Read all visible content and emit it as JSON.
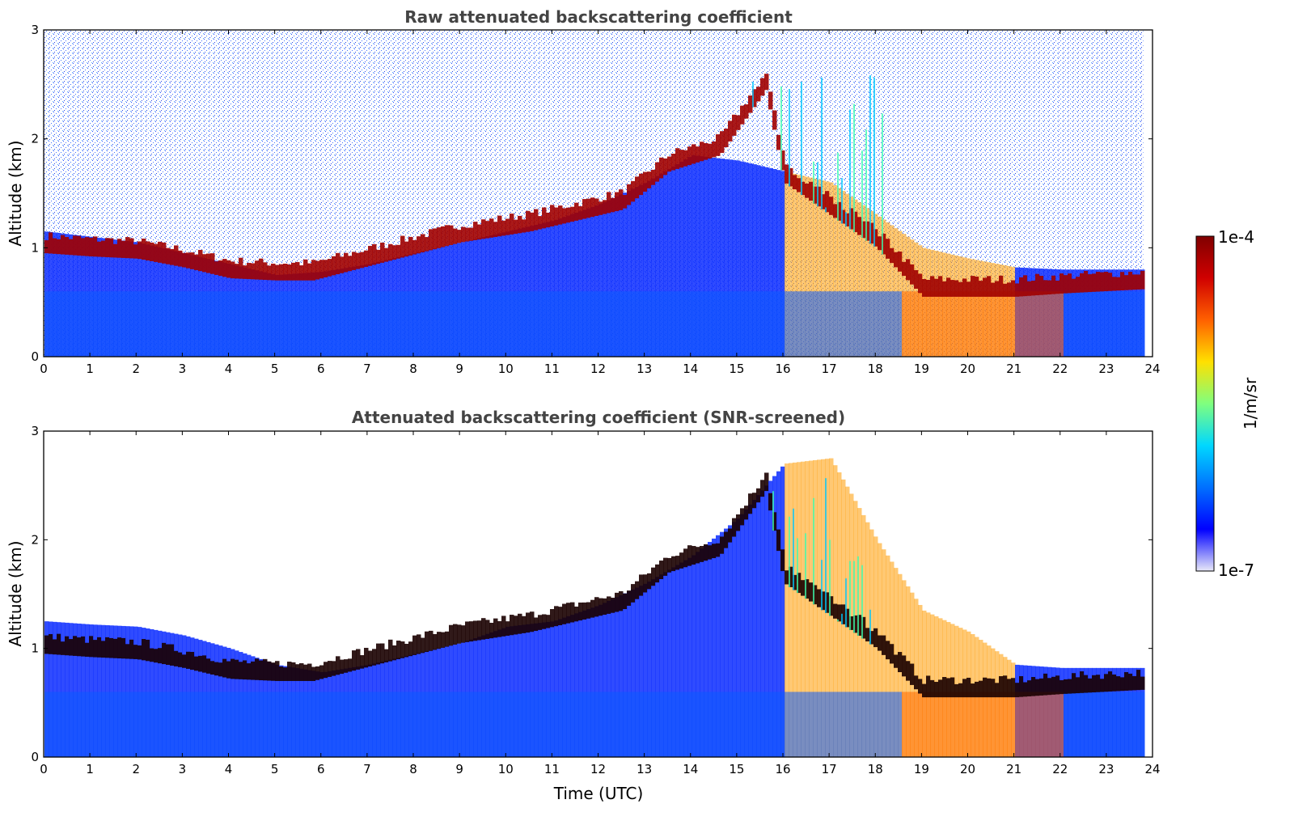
{
  "chart_data": [
    {
      "type": "heatmap",
      "title": "Raw attenuated backscattering coefficient",
      "xlabel": "",
      "ylabel": "Altitude (km)",
      "xlim": [
        0,
        24
      ],
      "ylim": [
        0,
        3
      ],
      "xticks": [
        "0",
        "1",
        "2",
        "3",
        "4",
        "5",
        "6",
        "7",
        "8",
        "9",
        "10",
        "11",
        "12",
        "13",
        "14",
        "15",
        "16",
        "17",
        "18",
        "19",
        "20",
        "21",
        "22",
        "23",
        "24"
      ],
      "yticks": [
        "0",
        "1",
        "2",
        "3"
      ],
      "data_end_hour": 23.8,
      "features": {
        "layer_top_km": [
          [
            0,
            1.15
          ],
          [
            1,
            1.1
          ],
          [
            2,
            1.05
          ],
          [
            3,
            0.95
          ],
          [
            4,
            0.85
          ],
          [
            5,
            0.75
          ],
          [
            6,
            0.78
          ],
          [
            7,
            0.85
          ],
          [
            8,
            0.95
          ],
          [
            9,
            1.05
          ],
          [
            10,
            1.15
          ],
          [
            11,
            1.25
          ],
          [
            12,
            1.4
          ],
          [
            13,
            1.6
          ],
          [
            14,
            1.85
          ],
          [
            15,
            1.8
          ],
          [
            16,
            1.7
          ],
          [
            17,
            1.6
          ],
          [
            18,
            1.3
          ],
          [
            19,
            1.0
          ],
          [
            20,
            0.9
          ],
          [
            21,
            0.82
          ],
          [
            22,
            0.8
          ],
          [
            23,
            0.8
          ],
          [
            23.8,
            0.8
          ]
        ],
        "cloud_base_km": [
          [
            0,
            0.95
          ],
          [
            1,
            0.92
          ],
          [
            2,
            0.9
          ],
          [
            3,
            0.82
          ],
          [
            4,
            0.72
          ],
          [
            5,
            0.7
          ],
          [
            5.8,
            0.7
          ],
          [
            9,
            1.05
          ],
          [
            10.5,
            1.15
          ],
          [
            11.5,
            1.25
          ],
          [
            12.5,
            1.35
          ],
          [
            13.5,
            1.7
          ],
          [
            14.6,
            1.85
          ],
          [
            15.6,
            2.45
          ],
          [
            16,
            1.6
          ],
          [
            17,
            1.3
          ],
          [
            18,
            1.0
          ],
          [
            19,
            0.55
          ],
          [
            20,
            0.55
          ],
          [
            21,
            0.55
          ],
          [
            22,
            0.58
          ],
          [
            23.8,
            0.62
          ]
        ]
      }
    },
    {
      "type": "heatmap",
      "title": "Attenuated backscattering coefficient (SNR-screened)",
      "xlabel": "Time (UTC)",
      "ylabel": "Altitude (km)",
      "xlim": [
        0,
        24
      ],
      "ylim": [
        0,
        3
      ],
      "xticks": [
        "0",
        "1",
        "2",
        "3",
        "4",
        "5",
        "6",
        "7",
        "8",
        "9",
        "10",
        "11",
        "12",
        "13",
        "14",
        "15",
        "16",
        "17",
        "18",
        "19",
        "20",
        "21",
        "22",
        "23",
        "24"
      ],
      "yticks": [
        "0",
        "1",
        "2",
        "3"
      ],
      "data_end_hour": 23.8,
      "features": {
        "screened_top_km": [
          [
            0,
            1.25
          ],
          [
            1,
            1.22
          ],
          [
            2,
            1.2
          ],
          [
            3,
            1.12
          ],
          [
            4,
            1.0
          ],
          [
            5,
            0.85
          ],
          [
            6,
            0.78
          ],
          [
            7,
            0.85
          ],
          [
            8,
            0.95
          ],
          [
            9,
            1.05
          ],
          [
            10,
            1.2
          ],
          [
            11,
            1.25
          ],
          [
            12,
            1.4
          ],
          [
            13,
            1.6
          ],
          [
            14,
            1.85
          ],
          [
            15,
            2.2
          ],
          [
            16,
            2.7
          ],
          [
            17,
            2.75
          ],
          [
            18,
            2.0
          ],
          [
            19,
            1.35
          ],
          [
            20,
            1.15
          ],
          [
            21,
            0.85
          ],
          [
            22,
            0.82
          ],
          [
            23,
            0.82
          ],
          [
            23.8,
            0.82
          ]
        ]
      }
    }
  ],
  "colorbar": {
    "label": "1/m/sr",
    "max_label": "1e-4",
    "min_label": "1e-7",
    "colors": [
      "#e8e8f8",
      "#0000ff",
      "#0070ff",
      "#00d8ff",
      "#7fff7f",
      "#ffe000",
      "#ff6000",
      "#d00000",
      "#800000"
    ]
  }
}
